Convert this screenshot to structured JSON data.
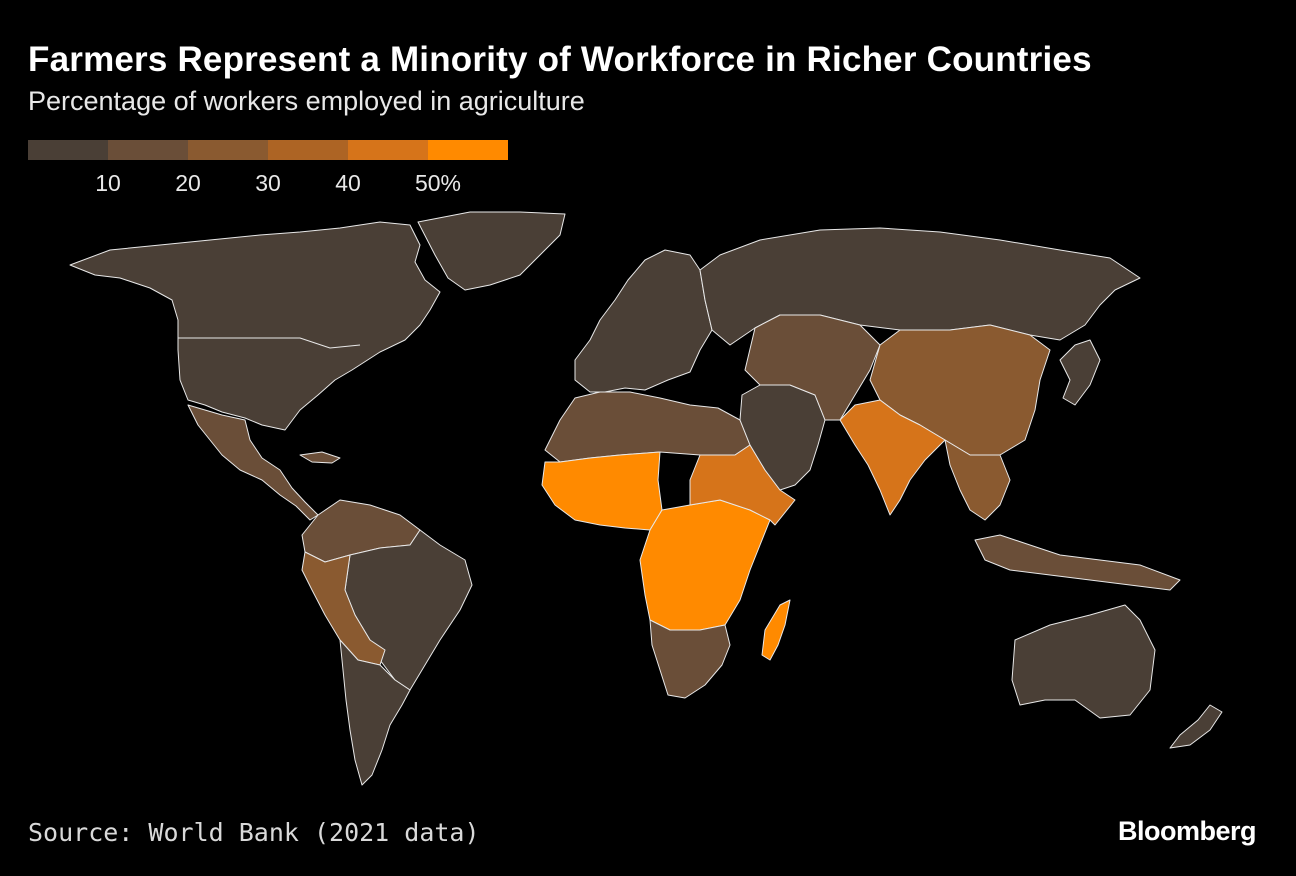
{
  "title": "Farmers Represent a Minority of Workforce in Richer Countries",
  "subtitle": "Percentage of workers employed in agriculture",
  "legend": {
    "colors": [
      "#4a3f36",
      "#6a4e38",
      "#8a5a30",
      "#ad6424",
      "#d6741a",
      "#ff8a00"
    ],
    "labels": [
      "10",
      "20",
      "30",
      "40",
      "50%"
    ]
  },
  "map": {
    "regions": [
      {
        "name": "north-america",
        "color": "#4a3f36"
      },
      {
        "name": "greenland",
        "color": "#4a3f36"
      },
      {
        "name": "mexico-central-america",
        "color": "#6a4e38"
      },
      {
        "name": "south-america-north",
        "color": "#6a4e38"
      },
      {
        "name": "brazil",
        "color": "#4a3f36"
      },
      {
        "name": "peru-bolivia",
        "color": "#8a5a30"
      },
      {
        "name": "southern-cone",
        "color": "#4a3f36"
      },
      {
        "name": "europe",
        "color": "#4a3f36"
      },
      {
        "name": "russia",
        "color": "#4a3f36"
      },
      {
        "name": "north-africa",
        "color": "#6a4e38"
      },
      {
        "name": "west-africa",
        "color": "#ff8a00"
      },
      {
        "name": "central-east-africa",
        "color": "#ff8a00"
      },
      {
        "name": "sudan-horn",
        "color": "#d6741a"
      },
      {
        "name": "southern-africa",
        "color": "#6a4e38"
      },
      {
        "name": "madagascar",
        "color": "#ff8a00"
      },
      {
        "name": "middle-east",
        "color": "#4a3f36"
      },
      {
        "name": "central-asia",
        "color": "#6a4e38"
      },
      {
        "name": "china",
        "color": "#8a5a30"
      },
      {
        "name": "india",
        "color": "#d6741a"
      },
      {
        "name": "southeast-asia",
        "color": "#8a5a30"
      },
      {
        "name": "indonesia-png",
        "color": "#6a4e38"
      },
      {
        "name": "japan-korea",
        "color": "#4a3f36"
      },
      {
        "name": "australia",
        "color": "#4a3f36"
      },
      {
        "name": "new-zealand",
        "color": "#4a3f36"
      }
    ]
  },
  "source": "Source: World Bank (2021 data)",
  "brand": "Bloomberg"
}
